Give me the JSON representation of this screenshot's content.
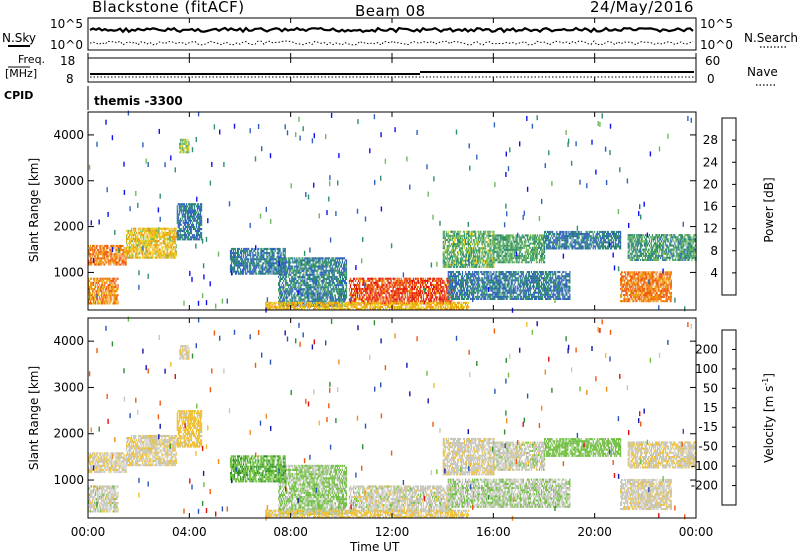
{
  "header": {
    "station": "Blackstone (fitACF)",
    "beam": "Beam 08",
    "date": "24/May/2016"
  },
  "summary_panels": {
    "nsky_label": "N.Sky",
    "nsearch_label": "N.Search",
    "nsky_ticks": [
      "10^5",
      "10^0"
    ],
    "freq_label_top": "Freq.",
    "freq_label_unit": "[MHz]",
    "freq_ticks": [
      "18",
      "8"
    ],
    "nave_label": "Nave",
    "nave_ticks": [
      "60",
      "0"
    ],
    "cpid_label": "CPID",
    "cpid_value": "themis -3300"
  },
  "axes": {
    "ylabel": "Slant Range [km]",
    "xlabel": "Time UT",
    "y_ticks": [
      "1000",
      "2000",
      "3000",
      "4000"
    ],
    "x_ticks": [
      "00:00",
      "04:00",
      "08:00",
      "12:00",
      "16:00",
      "20:00",
      "00:00"
    ]
  },
  "colorbars": {
    "power_label": "Power [dB]",
    "power_ticks": [
      "4",
      "8",
      "12",
      "16",
      "20",
      "24",
      "28"
    ],
    "velocity_label_main": "Velocity [m s",
    "velocity_label_exp": "-1",
    "velocity_label_close": "]",
    "velocity_ticks": [
      "200",
      "100",
      "50",
      "15",
      "-15",
      "-50",
      "-100",
      "-200"
    ]
  },
  "chart_data": {
    "type": "heatmap",
    "x_range_hours": [
      0,
      24
    ],
    "y_range_km": [
      180,
      4500
    ],
    "power_scale_db": [
      0,
      32
    ],
    "velocity_scale_ms": [
      -250,
      250
    ],
    "power_colors": [
      "#1010ee",
      "#3060c0",
      "#2f8f6f",
      "#6fb85f",
      "#e8d020",
      "#f09a10",
      "#f05a10",
      "#e01010"
    ],
    "velocity_colors": [
      "#1515b0",
      "#2a55b8",
      "#2f8e2f",
      "#70c040",
      "#c8c8c0",
      "#f0c030",
      "#f09020",
      "#f05a10",
      "#e01010"
    ],
    "echo_regions": [
      {
        "t_start": 0.0,
        "t_end": 1.5,
        "r_start": 1150,
        "r_end": 1600,
        "power_db": 24,
        "velocity_ms": -10
      },
      {
        "t_start": 1.5,
        "t_end": 3.5,
        "r_start": 1300,
        "r_end": 1950,
        "power_db": 19,
        "velocity_ms": -10
      },
      {
        "t_start": 3.5,
        "t_end": 4.5,
        "r_start": 1700,
        "r_end": 2500,
        "power_db": 8,
        "velocity_ms": -30
      },
      {
        "t_start": 0.0,
        "t_end": 1.2,
        "r_start": 300,
        "r_end": 850,
        "power_db": 23,
        "velocity_ms": 0
      },
      {
        "t_start": 3.6,
        "t_end": 4.0,
        "r_start": 3600,
        "r_end": 3900,
        "power_db": 15,
        "velocity_ms": -5
      },
      {
        "t_start": 7.5,
        "t_end": 10.2,
        "r_start": 250,
        "r_end": 1300,
        "power_db": 9,
        "velocity_ms": 20
      },
      {
        "t_start": 10.3,
        "t_end": 14.4,
        "r_start": 300,
        "r_end": 850,
        "power_db": 27,
        "velocity_ms": 0
      },
      {
        "t_start": 14.0,
        "t_end": 16.0,
        "r_start": 1100,
        "r_end": 1900,
        "power_db": 13,
        "velocity_ms": -5
      },
      {
        "t_start": 16.0,
        "t_end": 18.0,
        "r_start": 1200,
        "r_end": 1800,
        "power_db": 12,
        "velocity_ms": 0
      },
      {
        "t_start": 18.0,
        "t_end": 21.0,
        "r_start": 1500,
        "r_end": 1900,
        "power_db": 8,
        "velocity_ms": 30
      },
      {
        "t_start": 21.3,
        "t_end": 24.0,
        "r_start": 1250,
        "r_end": 1800,
        "power_db": 11,
        "velocity_ms": -10
      },
      {
        "t_start": 21.0,
        "t_end": 23.0,
        "r_start": 350,
        "r_end": 1000,
        "power_db": 24,
        "velocity_ms": -5
      },
      {
        "t_start": 14.2,
        "t_end": 19.0,
        "r_start": 400,
        "r_end": 1000,
        "power_db": 8,
        "velocity_ms": 10
      },
      {
        "t_start": 7.0,
        "t_end": 15.0,
        "r_start": 180,
        "r_end": 350,
        "power_db": 20,
        "velocity_ms": -20
      },
      {
        "t_start": 5.6,
        "t_end": 7.8,
        "r_start": 950,
        "r_end": 1500,
        "power_db": 8,
        "velocity_ms": 40
      }
    ]
  }
}
